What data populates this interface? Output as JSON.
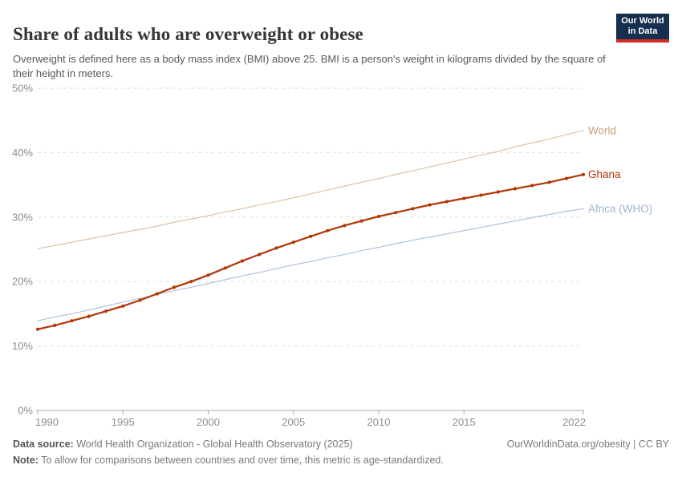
{
  "header": {
    "title": "Share of adults who are overweight or obese",
    "subtitle": "Overweight is defined here as a body mass index (BMI) above 25. BMI is a person's weight in kilograms divided by the square of their height in meters.",
    "logo": {
      "line1": "Our World",
      "line2": "in Data"
    }
  },
  "colors": {
    "ghana": "#b13507",
    "world_line": "#d6bea0",
    "world_label": "#c9a279",
    "africa_line": "#a9bcd9",
    "africa_label": "#a3b3ce",
    "gridline": "#dddddd",
    "axis": "#a8a8a8",
    "tick_label": "#8c8c8c",
    "logo_bg": "#15304e",
    "logo_stripe": "#d42b24"
  },
  "chart_data": {
    "type": "line",
    "title": "Share of adults who are overweight or obese",
    "xlabel": "",
    "ylabel": "",
    "xlim": [
      1990,
      2022
    ],
    "ylim": [
      0,
      50
    ],
    "grid": "horizontal-dashed",
    "legend_position": "right-of-line-end-labels",
    "x": [
      1990,
      1991,
      1992,
      1993,
      1994,
      1995,
      1996,
      1997,
      1998,
      1999,
      2000,
      2001,
      2002,
      2003,
      2004,
      2005,
      2006,
      2007,
      2008,
      2009,
      2010,
      2011,
      2012,
      2013,
      2014,
      2015,
      2016,
      2017,
      2018,
      2019,
      2020,
      2021,
      2022
    ],
    "series": [
      {
        "name": "World",
        "markers": false,
        "line_width": 1.1,
        "values": [
          25.1,
          25.6,
          26.1,
          26.6,
          27.1,
          27.6,
          28.1,
          28.6,
          29.2,
          29.7,
          30.2,
          30.8,
          31.3,
          31.9,
          32.4,
          33.0,
          33.6,
          34.2,
          34.8,
          35.4,
          36.0,
          36.6,
          37.2,
          37.8,
          38.4,
          39.0,
          39.6,
          40.2,
          40.9,
          41.5,
          42.1,
          42.8,
          43.4
        ]
      },
      {
        "name": "Africa (WHO)",
        "markers": false,
        "line_width": 1.1,
        "values": [
          13.9,
          14.5,
          15.0,
          15.6,
          16.2,
          16.8,
          17.4,
          18.0,
          18.6,
          19.1,
          19.7,
          20.3,
          20.9,
          21.4,
          22.0,
          22.6,
          23.1,
          23.7,
          24.2,
          24.8,
          25.3,
          25.9,
          26.4,
          26.9,
          27.4,
          27.9,
          28.4,
          28.9,
          29.4,
          29.9,
          30.4,
          30.9,
          31.3
        ]
      },
      {
        "name": "Ghana",
        "markers": true,
        "line_width": 2.2,
        "values": [
          12.6,
          13.2,
          13.9,
          14.6,
          15.4,
          16.2,
          17.1,
          18.1,
          19.1,
          20.0,
          21.0,
          22.1,
          23.2,
          24.2,
          25.2,
          26.1,
          27.0,
          27.9,
          28.7,
          29.4,
          30.1,
          30.7,
          31.3,
          31.9,
          32.4,
          32.9,
          33.4,
          33.9,
          34.4,
          34.9,
          35.4,
          36.0,
          36.6
        ]
      }
    ],
    "y_ticks": [
      {
        "value": 0,
        "label": "0%"
      },
      {
        "value": 10,
        "label": "10%"
      },
      {
        "value": 20,
        "label": "20%"
      },
      {
        "value": 30,
        "label": "30%"
      },
      {
        "value": 40,
        "label": "40%"
      },
      {
        "value": 50,
        "label": "50%"
      }
    ],
    "x_ticks": [
      {
        "value": 1990,
        "label": "1990"
      },
      {
        "value": 1995,
        "label": "1995"
      },
      {
        "value": 2000,
        "label": "2000"
      },
      {
        "value": 2005,
        "label": "2005"
      },
      {
        "value": 2010,
        "label": "2010"
      },
      {
        "value": 2015,
        "label": "2015"
      },
      {
        "value": 2022,
        "label": "2022"
      }
    ]
  },
  "footer": {
    "datasource_label": "Data source:",
    "datasource_text": " World Health Organization - Global Health Observatory (2025)",
    "note_label": "Note:",
    "note_text": " To allow for comparisons between countries and over time, this metric is age-standardized.",
    "link": "OurWorldinData.org/obesity | CC BY"
  }
}
